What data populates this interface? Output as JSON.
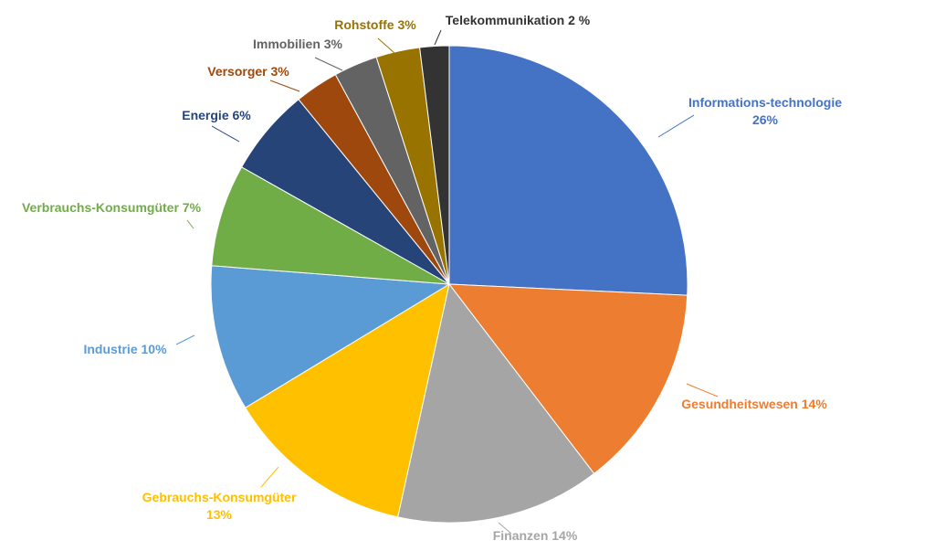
{
  "chart_data": {
    "type": "pie",
    "title": "",
    "slices": [
      {
        "label_lines": [
          "Informations-technologie",
          "26%"
        ],
        "value": 26,
        "color": "#4472C4",
        "label_color": "#4472C4"
      },
      {
        "label_lines": [
          "Gesundheitswesen  14%"
        ],
        "value": 14,
        "color": "#ED7D31",
        "label_color": "#ED7D31"
      },
      {
        "label_lines": [
          "Finanzen  14%"
        ],
        "value": 14,
        "color": "#A5A5A5",
        "label_color": "#A5A5A5"
      },
      {
        "label_lines": [
          "Gebrauchs-Konsumgüter",
          "13%"
        ],
        "value": 13,
        "color": "#FFC000",
        "label_color": "#FFC000"
      },
      {
        "label_lines": [
          "Industrie  10%"
        ],
        "value": 10,
        "color": "#5B9BD5",
        "label_color": "#5B9BD5"
      },
      {
        "label_lines": [
          "Verbrauchs-Konsumgüter 7%"
        ],
        "value": 7,
        "color": "#70AD47",
        "label_color": "#70AD47"
      },
      {
        "label_lines": [
          "Energie  6%"
        ],
        "value": 6,
        "color": "#264478",
        "label_color": "#264478"
      },
      {
        "label_lines": [
          "Versorger  3%"
        ],
        "value": 3,
        "color": "#9E480E",
        "label_color": "#9E480E"
      },
      {
        "label_lines": [
          "Immobilien 3%"
        ],
        "value": 3,
        "color": "#636363",
        "label_color": "#636363"
      },
      {
        "label_lines": [
          "Rohstoffe 3%"
        ],
        "value": 3,
        "color": "#997300",
        "label_color": "#997300"
      },
      {
        "label_lines": [
          "Telekommunikation 2 %"
        ],
        "value": 2,
        "color": "#333333",
        "label_color": "#333333"
      }
    ],
    "start_angle": "12 o'clock",
    "direction": "clockwise",
    "legend": "none",
    "labels": "outside with leader lines"
  }
}
